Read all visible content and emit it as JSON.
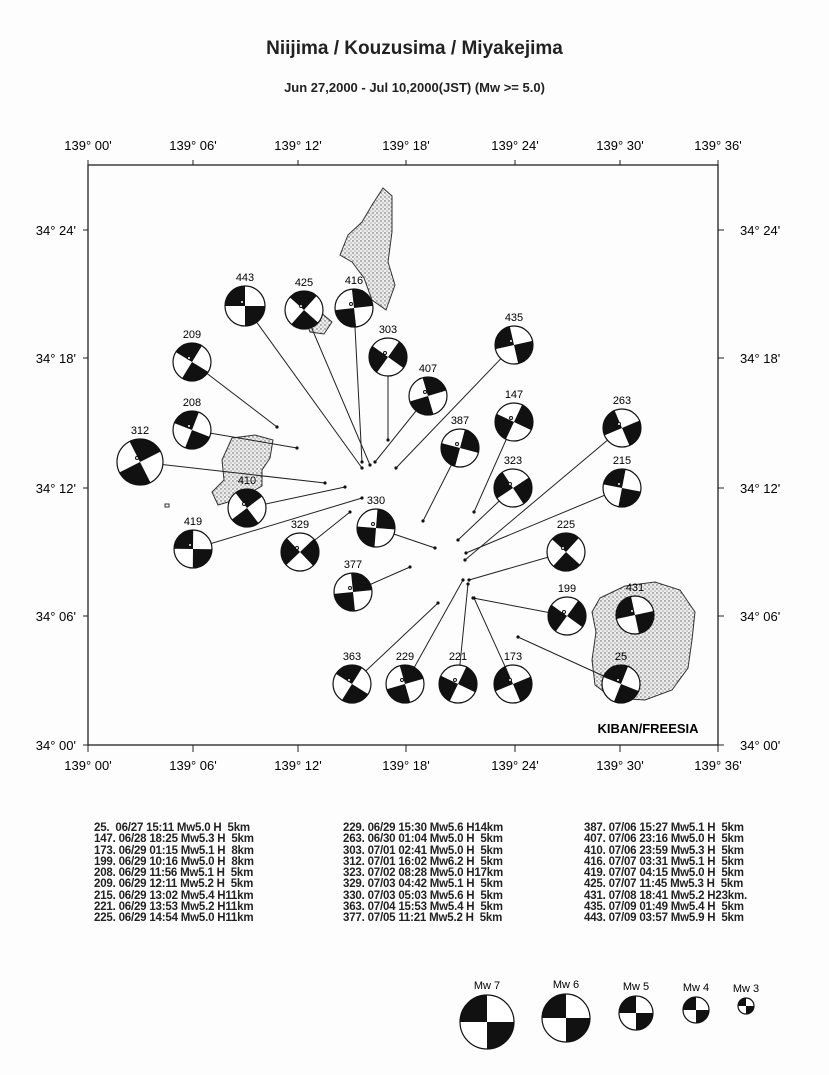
{
  "title": "Niijima / Kouzusima / Miyakejima",
  "subtitle": "Jun 27,2000 - Jul 10,2000(JST) (Mw >= 5.0)",
  "credit": "KIBAN/FREESIA",
  "lon_ticks": [
    "139° 00'",
    "139° 06'",
    "139° 12'",
    "139° 18'",
    "139° 24'",
    "139° 30'",
    "139° 36'"
  ],
  "lat_ticks": [
    "34° 24'",
    "34° 18'",
    "34° 12'",
    "34° 06'",
    "34° 00'"
  ],
  "mechanisms": [
    {
      "id": "443",
      "mw": 5.9
    },
    {
      "id": "425",
      "mw": 5.3
    },
    {
      "id": "416",
      "mw": 5.1
    },
    {
      "id": "303",
      "mw": 5.0
    },
    {
      "id": "435",
      "mw": 5.4
    },
    {
      "id": "209",
      "mw": 5.2
    },
    {
      "id": "407",
      "mw": 5.0
    },
    {
      "id": "147",
      "mw": 5.3
    },
    {
      "id": "263",
      "mw": 5.0
    },
    {
      "id": "208",
      "mw": 5.1
    },
    {
      "id": "312",
      "mw": 6.2
    },
    {
      "id": "387",
      "mw": 5.1
    },
    {
      "id": "323",
      "mw": 5.0
    },
    {
      "id": "215",
      "mw": 5.4
    },
    {
      "id": "410",
      "mw": 5.3
    },
    {
      "id": "330",
      "mw": 5.6
    },
    {
      "id": "329",
      "mw": 5.1
    },
    {
      "id": "419",
      "mw": 5.0
    },
    {
      "id": "225",
      "mw": 5.0
    },
    {
      "id": "377",
      "mw": 5.2
    },
    {
      "id": "199",
      "mw": 5.0
    },
    {
      "id": "431",
      "mw": 5.2
    },
    {
      "id": "363",
      "mw": 5.4
    },
    {
      "id": "229",
      "mw": 5.6
    },
    {
      "id": "221",
      "mw": 5.2
    },
    {
      "id": "173",
      "mw": 5.1
    },
    {
      "id": "25",
      "mw": 5.0
    }
  ],
  "events": [
    [
      "25.  06/27 15:11 Mw5.0 H  5km",
      "147. 06/28 18:25 Mw5.3 H  5km",
      "173. 06/29 01:15 Mw5.1 H  8km",
      "199. 06/29 10:16 Mw5.0 H  8km",
      "208. 06/29 11:56 Mw5.1 H  5km",
      "209. 06/29 12:11 Mw5.2 H  5km",
      "215. 06/29 13:02 Mw5.4 H11km",
      "221. 06/29 13:53 Mw5.2 H11km",
      "225. 06/29 14:54 Mw5.0 H11km"
    ],
    [
      "229. 06/29 15:30 Mw5.6 H14km",
      "263. 06/30 01:04 Mw5.0 H  5km",
      "303. 07/01 02:41 Mw5.0 H  5km",
      "312. 07/01 16:02 Mw6.2 H  5km",
      "323. 07/02 08:28 Mw5.0 H17km",
      "329. 07/03 04:42 Mw5.1 H  5km",
      "330. 07/03 05:03 Mw5.6 H  5km",
      "363. 07/04 15:53 Mw5.4 H  5km",
      "377. 07/05 11:21 Mw5.2 H  5km"
    ],
    [
      "387. 07/06 15:27 Mw5.1 H  5km",
      "407. 07/06 23:16 Mw5.0 H  5km",
      "410. 07/06 23:59 Mw5.3 H  5km",
      "416. 07/07 03:31 Mw5.1 H  5km",
      "419. 07/07 04:15 Mw5.0 H  5km",
      "425. 07/07 11:45 Mw5.3 H  5km",
      "431. 07/08 18:41 Mw5.2 H23km.",
      "435. 07/09 01:49 Mw5.4 H  5km",
      "443. 07/09 03:57 Mw5.9 H  5km"
    ]
  ],
  "legend": [
    "Mw 7",
    "Mw 6",
    "Mw 5",
    "Mw 4",
    "Mw 3"
  ]
}
